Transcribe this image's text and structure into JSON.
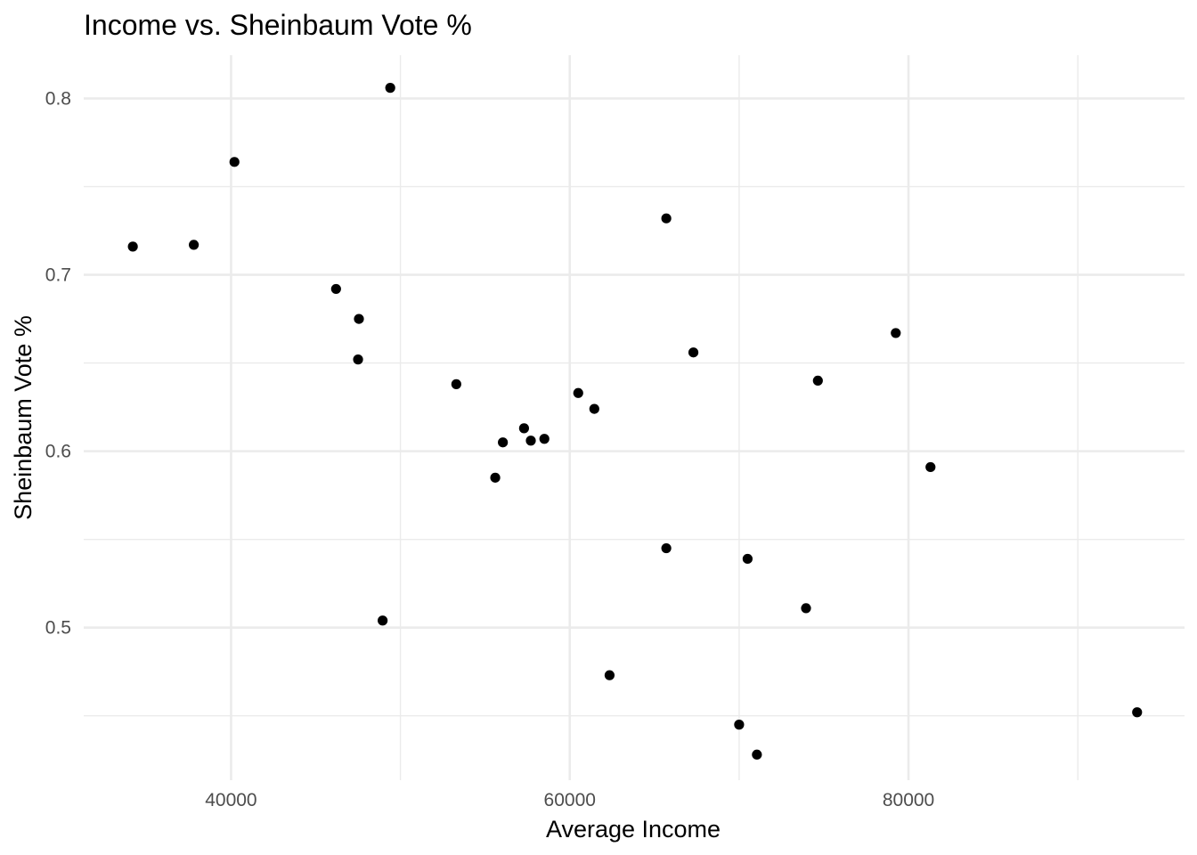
{
  "chart_data": {
    "type": "scatter",
    "title": "Income vs. Sheinbaum Vote %",
    "xlabel": "Average Income",
    "ylabel": "Sheinbaum Vote %",
    "xlim": [
      31300,
      96300
    ],
    "ylim": [
      0.4135,
      0.8245
    ],
    "x_ticks": [
      40000,
      60000,
      80000
    ],
    "x_tick_labels": [
      "40000",
      "60000",
      "80000"
    ],
    "x_minor_ticks": [
      50000,
      70000,
      90000
    ],
    "y_ticks": [
      0.5,
      0.6,
      0.7,
      0.8
    ],
    "y_tick_labels": [
      "0.5",
      "0.6",
      "0.7",
      "0.8"
    ],
    "y_minor_ticks": [
      0.45,
      0.55,
      0.65,
      0.75
    ],
    "grid": true,
    "point_color": "#000000",
    "points": [
      {
        "x": 34200,
        "y": 0.716
      },
      {
        "x": 37800,
        "y": 0.717
      },
      {
        "x": 40200,
        "y": 0.764
      },
      {
        "x": 46200,
        "y": 0.692
      },
      {
        "x": 47550,
        "y": 0.675
      },
      {
        "x": 47500,
        "y": 0.652
      },
      {
        "x": 48950,
        "y": 0.504
      },
      {
        "x": 49400,
        "y": 0.806
      },
      {
        "x": 53300,
        "y": 0.638
      },
      {
        "x": 55600,
        "y": 0.585
      },
      {
        "x": 56050,
        "y": 0.605
      },
      {
        "x": 57300,
        "y": 0.613
      },
      {
        "x": 57700,
        "y": 0.606
      },
      {
        "x": 58500,
        "y": 0.607
      },
      {
        "x": 60500,
        "y": 0.633
      },
      {
        "x": 61450,
        "y": 0.624
      },
      {
        "x": 62350,
        "y": 0.473
      },
      {
        "x": 65700,
        "y": 0.732
      },
      {
        "x": 65700,
        "y": 0.545
      },
      {
        "x": 67300,
        "y": 0.656
      },
      {
        "x": 70000,
        "y": 0.445
      },
      {
        "x": 70500,
        "y": 0.539
      },
      {
        "x": 71050,
        "y": 0.428
      },
      {
        "x": 73950,
        "y": 0.511
      },
      {
        "x": 74650,
        "y": 0.64
      },
      {
        "x": 79250,
        "y": 0.667
      },
      {
        "x": 81300,
        "y": 0.591
      },
      {
        "x": 93500,
        "y": 0.452
      }
    ]
  }
}
